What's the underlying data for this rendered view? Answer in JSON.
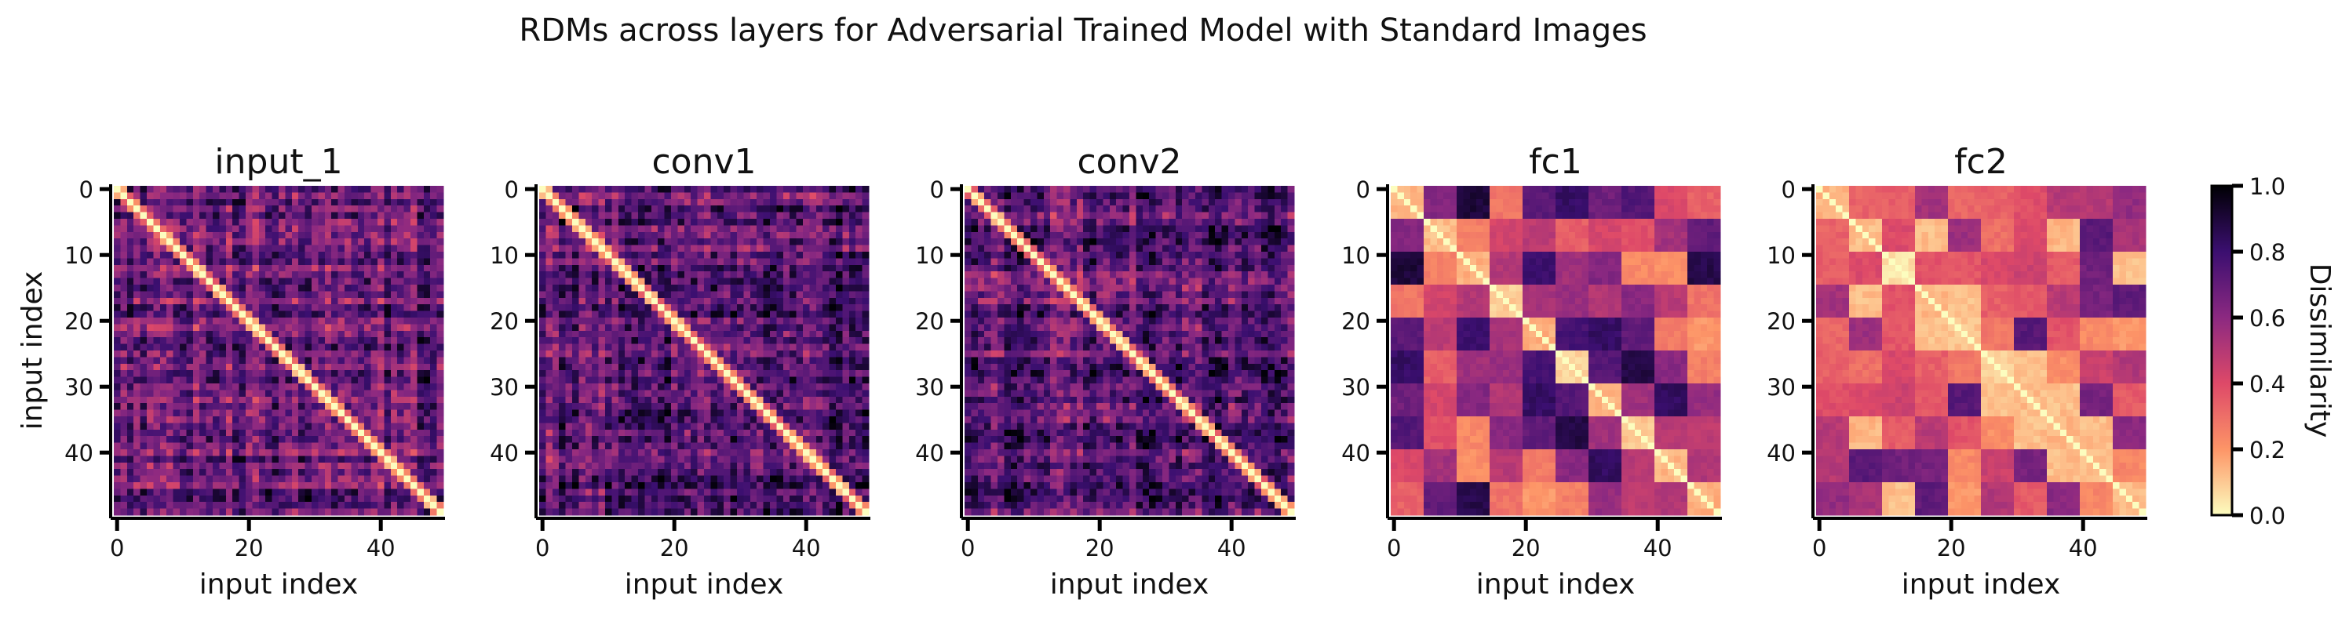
{
  "figure": {
    "title": "RDMs across layers for Adversarial Trained Model with Standard Images"
  },
  "chart_data": [
    {
      "type": "heatmap",
      "title": "input_1",
      "xlabel": "input index",
      "ylabel": "input index",
      "n": 50,
      "xticks": [
        0,
        20,
        40
      ],
      "yticks": [
        0,
        10,
        20,
        30,
        40
      ],
      "value_range": [
        0.0,
        1.0
      ],
      "pattern": "per-image",
      "mean_dissimilarity": 0.68,
      "diagonal": 0.0
    },
    {
      "type": "heatmap",
      "title": "conv1",
      "xlabel": "input index",
      "ylabel": "",
      "n": 50,
      "xticks": [
        0,
        20,
        40
      ],
      "yticks": [
        0,
        10,
        20,
        30,
        40
      ],
      "value_range": [
        0.0,
        1.0
      ],
      "pattern": "per-image",
      "mean_dissimilarity": 0.7,
      "diagonal": 0.0
    },
    {
      "type": "heatmap",
      "title": "conv2",
      "xlabel": "input index",
      "ylabel": "",
      "n": 50,
      "xticks": [
        0,
        20,
        40
      ],
      "yticks": [
        0,
        10,
        20,
        30,
        40
      ],
      "value_range": [
        0.0,
        1.0
      ],
      "pattern": "per-image",
      "mean_dissimilarity": 0.7,
      "diagonal": 0.0
    },
    {
      "type": "heatmap",
      "title": "fc1",
      "xlabel": "input index",
      "ylabel": "",
      "n": 50,
      "xticks": [
        0,
        20,
        40
      ],
      "yticks": [
        0,
        10,
        20,
        30,
        40
      ],
      "value_range": [
        0.0,
        1.0
      ],
      "pattern": "block-5",
      "mean_dissimilarity": 0.55,
      "diagonal": 0.0
    },
    {
      "type": "heatmap",
      "title": "fc2",
      "xlabel": "input index",
      "ylabel": "",
      "n": 50,
      "xticks": [
        0,
        20,
        40
      ],
      "yticks": [
        0,
        10,
        20,
        30,
        40
      ],
      "value_range": [
        0.0,
        1.0
      ],
      "pattern": "block-5",
      "mean_dissimilarity": 0.4,
      "diagonal": 0.0
    }
  ],
  "colorbar": {
    "label": "Dissimilarity",
    "ticks": [
      "0.0",
      "0.2",
      "0.4",
      "0.6",
      "0.8",
      "1.0"
    ],
    "colormap": "magma_r",
    "stops": [
      "#fcfdbf",
      "#fd9567",
      "#de4968",
      "#8c2981",
      "#3b0f70",
      "#000004"
    ]
  }
}
